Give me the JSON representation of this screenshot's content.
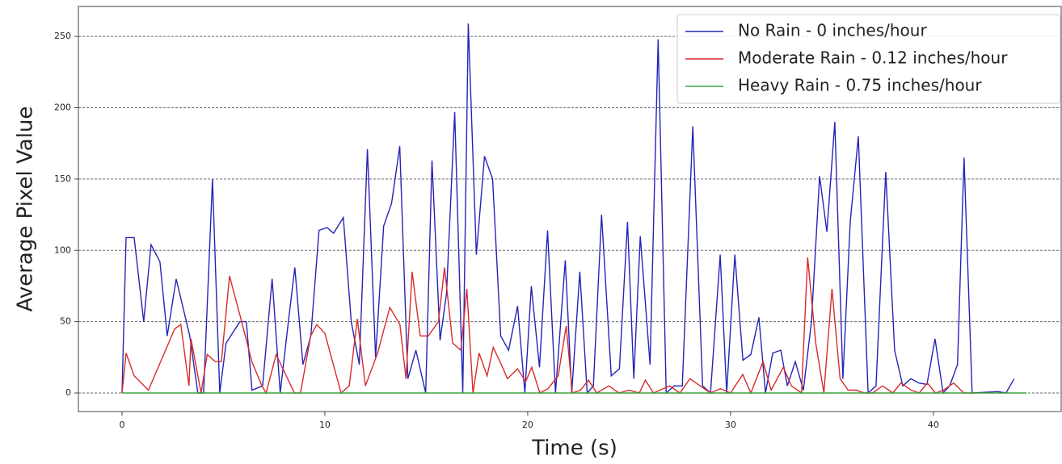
{
  "chart_data": {
    "type": "line",
    "xlabel": "Time (s)",
    "ylabel": "Average Pixel Value",
    "xlim": [
      -2.15,
      46.3
    ],
    "ylim": [
      -13,
      271
    ],
    "xticks": [
      0,
      10,
      20,
      30,
      40
    ],
    "yticks": [
      0,
      50,
      100,
      150,
      200,
      250
    ],
    "grid": true,
    "legend": "upper right",
    "series": [
      {
        "name": "No Rain - 0 inches/hour",
        "color": "#2424b8",
        "x": [
          0,
          0.2,
          0.6,
          1.07,
          1.43,
          1.87,
          2.23,
          2.67,
          3.34,
          3.74,
          4.02,
          4.46,
          4.82,
          5.13,
          5.81,
          6.13,
          6.41,
          6.93,
          7.4,
          7.8,
          8.2,
          8.52,
          8.92,
          9.31,
          9.71,
          10.11,
          10.43,
          10.91,
          11.3,
          11.7,
          12.1,
          12.5,
          12.9,
          13.29,
          13.69,
          14.09,
          14.49,
          14.97,
          15.28,
          15.68,
          16,
          16.4,
          16.8,
          17.07,
          17.47,
          17.87,
          18.27,
          18.67,
          19.06,
          19.5,
          19.86,
          20.18,
          20.58,
          20.98,
          21.37,
          21.85,
          22.17,
          22.57,
          22.93,
          23.24,
          23.64,
          24.12,
          24.52,
          24.92,
          25.23,
          25.55,
          26.03,
          26.43,
          26.83,
          27.22,
          27.62,
          28.14,
          28.62,
          29.01,
          29.49,
          29.81,
          30.21,
          30.61,
          31,
          31.4,
          31.72,
          32.08,
          32.48,
          32.8,
          33.19,
          33.59,
          33.99,
          34.39,
          34.75,
          35.14,
          35.54,
          35.9,
          36.3,
          36.78,
          37.17,
          37.65,
          38.09,
          38.49,
          38.89,
          39.28,
          39.68,
          40.08,
          40.48,
          40.8,
          41.19,
          41.51,
          41.91,
          43.18,
          43.58,
          43.98
        ],
        "values": [
          0,
          109,
          109,
          50,
          104,
          92,
          40,
          80,
          40,
          0,
          0,
          150,
          0,
          35,
          50,
          50,
          2,
          5,
          80,
          0,
          50,
          88,
          20,
          40,
          114,
          116,
          112,
          123,
          50,
          20,
          171,
          25,
          117,
          133,
          173,
          10,
          30,
          0,
          163,
          37,
          70,
          197,
          0,
          259,
          97,
          166,
          150,
          40,
          30,
          61,
          0,
          75,
          18,
          114,
          0,
          93,
          0,
          85,
          0,
          5,
          125,
          12,
          17,
          120,
          10,
          110,
          20,
          248,
          0,
          5,
          5,
          187,
          5,
          0,
          97,
          0,
          97,
          23,
          27,
          53,
          0,
          28,
          30,
          5,
          22,
          2,
          50,
          152,
          113,
          190,
          10,
          120,
          180,
          0,
          5,
          155,
          30,
          5,
          10,
          7,
          6,
          38,
          0,
          5,
          20,
          165,
          0,
          1,
          0,
          10
        ]
      },
      {
        "name": "Moderate Rain - 0.12 inches/hour",
        "color": "#d82a2a",
        "x": [
          0,
          0.2,
          0.6,
          1.3,
          2.6,
          2.9,
          3.3,
          3.4,
          3.9,
          4.2,
          4.6,
          4.9,
          5.3,
          5.9,
          6.4,
          6.9,
          7.1,
          7.6,
          8.0,
          8.5,
          8.8,
          9.3,
          9.6,
          10.0,
          10.8,
          11.2,
          11.6,
          12.0,
          12.6,
          13.2,
          13.7,
          14.0,
          14.3,
          14.7,
          15.1,
          15.6,
          15.9,
          16.3,
          16.7,
          17.0,
          17.3,
          17.6,
          18.0,
          18.3,
          18.7,
          19.0,
          19.5,
          19.9,
          20.2,
          20.6,
          21.0,
          21.5,
          21.9,
          22.2,
          22.6,
          23.0,
          23.4,
          24.0,
          24.5,
          25.0,
          25.5,
          25.8,
          26.2,
          27.0,
          27.5,
          28.0,
          28.5,
          29.0,
          29.5,
          30.0,
          30.6,
          31.0,
          31.6,
          32.0,
          32.6,
          33.0,
          33.5,
          33.8,
          34.2,
          34.6,
          35.0,
          35.4,
          35.8,
          36.2,
          36.6,
          37.0,
          37.5,
          38.0,
          38.4,
          38.9,
          39.3,
          39.7,
          40.1,
          40.5,
          41.0,
          41.5,
          42.0
        ],
        "values": [
          0,
          28,
          12,
          2,
          45,
          48,
          5,
          38,
          0,
          27,
          22,
          22,
          82,
          50,
          22,
          5,
          0,
          27,
          15,
          0,
          0,
          40,
          48,
          42,
          0,
          5,
          52,
          5,
          28,
          60,
          48,
          10,
          85,
          40,
          40,
          50,
          88,
          35,
          30,
          73,
          0,
          28,
          12,
          32,
          20,
          10,
          17,
          8,
          18,
          0,
          3,
          12,
          47,
          0,
          2,
          9,
          0,
          5,
          0,
          2,
          0,
          9,
          0,
          5,
          0,
          10,
          5,
          0,
          3,
          0,
          13,
          0,
          22,
          2,
          18,
          5,
          0,
          95,
          35,
          0,
          73,
          10,
          2,
          2,
          0,
          0,
          5,
          0,
          7,
          2,
          0,
          7,
          0,
          2,
          7,
          0,
          0
        ]
      },
      {
        "name": "Heavy Rain - 0.75 inches/hour",
        "color": "#3ca33c",
        "x": [
          0,
          44.6
        ],
        "values": [
          0,
          0
        ]
      }
    ]
  }
}
